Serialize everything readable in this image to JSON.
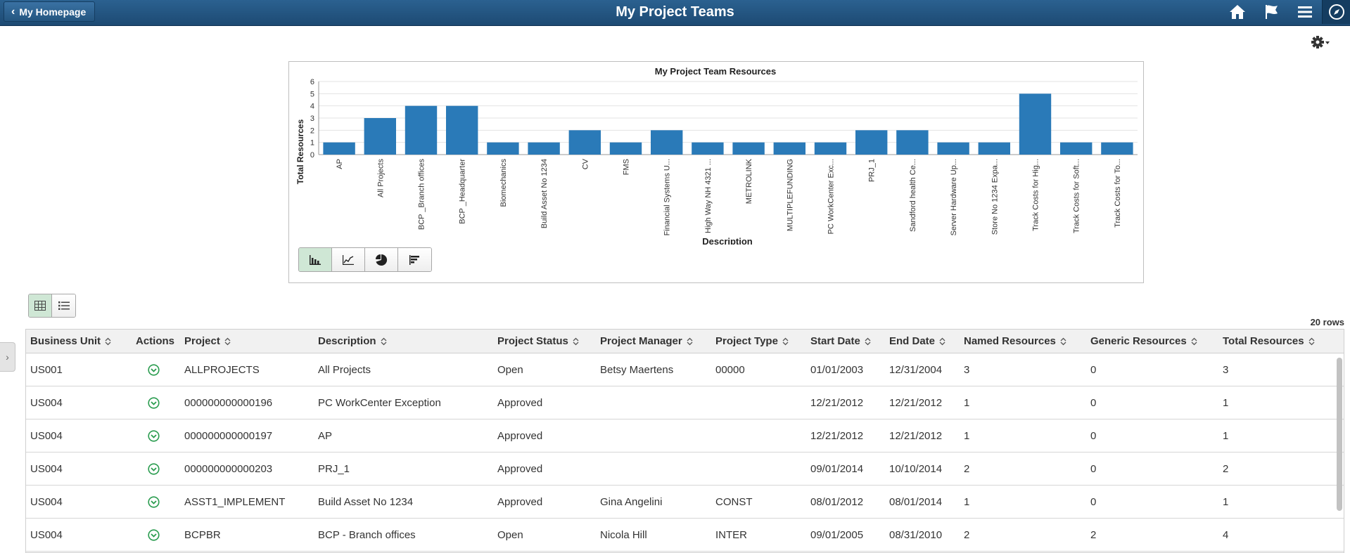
{
  "banner": {
    "back_label": "My Homepage",
    "title": "My Project Teams",
    "icons": [
      "home-icon",
      "flag-icon",
      "menu-icon",
      "navbar-compass-icon"
    ]
  },
  "chart_data": {
    "type": "bar",
    "title": "My Project Team Resources",
    "xlabel": "Description",
    "ylabel": "Total Resources",
    "ylim": [
      0,
      6
    ],
    "yticks": [
      "0",
      "1",
      "2",
      "3",
      "4",
      "5",
      "6"
    ],
    "grid": true,
    "categories": [
      "AP",
      "All Projects",
      "BCP _Branch offices",
      "BCP _Headquarter",
      "Biomechanics",
      "Build Asset No 1234",
      "CV",
      "FMS",
      "Financial Systems U...",
      "High Way NH 4321 ...",
      "METROLINK",
      "MULTIPLEFUNDING",
      "PC WorkCenter Exc...",
      "PRJ_1",
      "Sandford health Ce...",
      "Server Hardware Up...",
      "Store No 1234 Expa...",
      "Track Costs for Hig...",
      "Track Costs for Soft...",
      "Track Costs for To..."
    ],
    "values": [
      1,
      3,
      4,
      4,
      1,
      1,
      2,
      1,
      2,
      1,
      1,
      1,
      1,
      2,
      2,
      1,
      1,
      5,
      1,
      1
    ],
    "color": "#2a7ab8"
  },
  "chart_types": [
    "bar-chart-icon",
    "line-chart-icon",
    "pie-chart-icon",
    "horizontal-bar-icon"
  ],
  "grid": {
    "row_count": "20 rows",
    "columns": [
      "Business Unit",
      "Actions",
      "Project",
      "Description",
      "Project Status",
      "Project Manager",
      "Project Type",
      "Start Date",
      "End Date",
      "Named Resources",
      "Generic Resources",
      "Total Resources"
    ],
    "rows": [
      [
        "US001",
        "",
        "ALLPROJECTS",
        "All Projects",
        "Open",
        "Betsy Maertens",
        "00000",
        "01/01/2003",
        "12/31/2004",
        "3",
        "0",
        "3"
      ],
      [
        "US004",
        "",
        "000000000000196",
        "PC WorkCenter Exception",
        "Approved",
        "",
        "",
        "12/21/2012",
        "12/21/2012",
        "1",
        "0",
        "1"
      ],
      [
        "US004",
        "",
        "000000000000197",
        "AP",
        "Approved",
        "",
        "",
        "12/21/2012",
        "12/21/2012",
        "1",
        "0",
        "1"
      ],
      [
        "US004",
        "",
        "000000000000203",
        "PRJ_1",
        "Approved",
        "",
        "",
        "09/01/2014",
        "10/10/2014",
        "2",
        "0",
        "2"
      ],
      [
        "US004",
        "",
        "ASST1_IMPLEMENT",
        "Build Asset No 1234",
        "Approved",
        "Gina Angelini",
        "CONST",
        "08/01/2012",
        "08/01/2014",
        "1",
        "0",
        "1"
      ],
      [
        "US004",
        "",
        "BCPBR",
        "BCP - Branch offices",
        "Open",
        "Nicola Hill",
        "INTER",
        "09/01/2005",
        "08/31/2010",
        "2",
        "2",
        "4"
      ]
    ]
  }
}
